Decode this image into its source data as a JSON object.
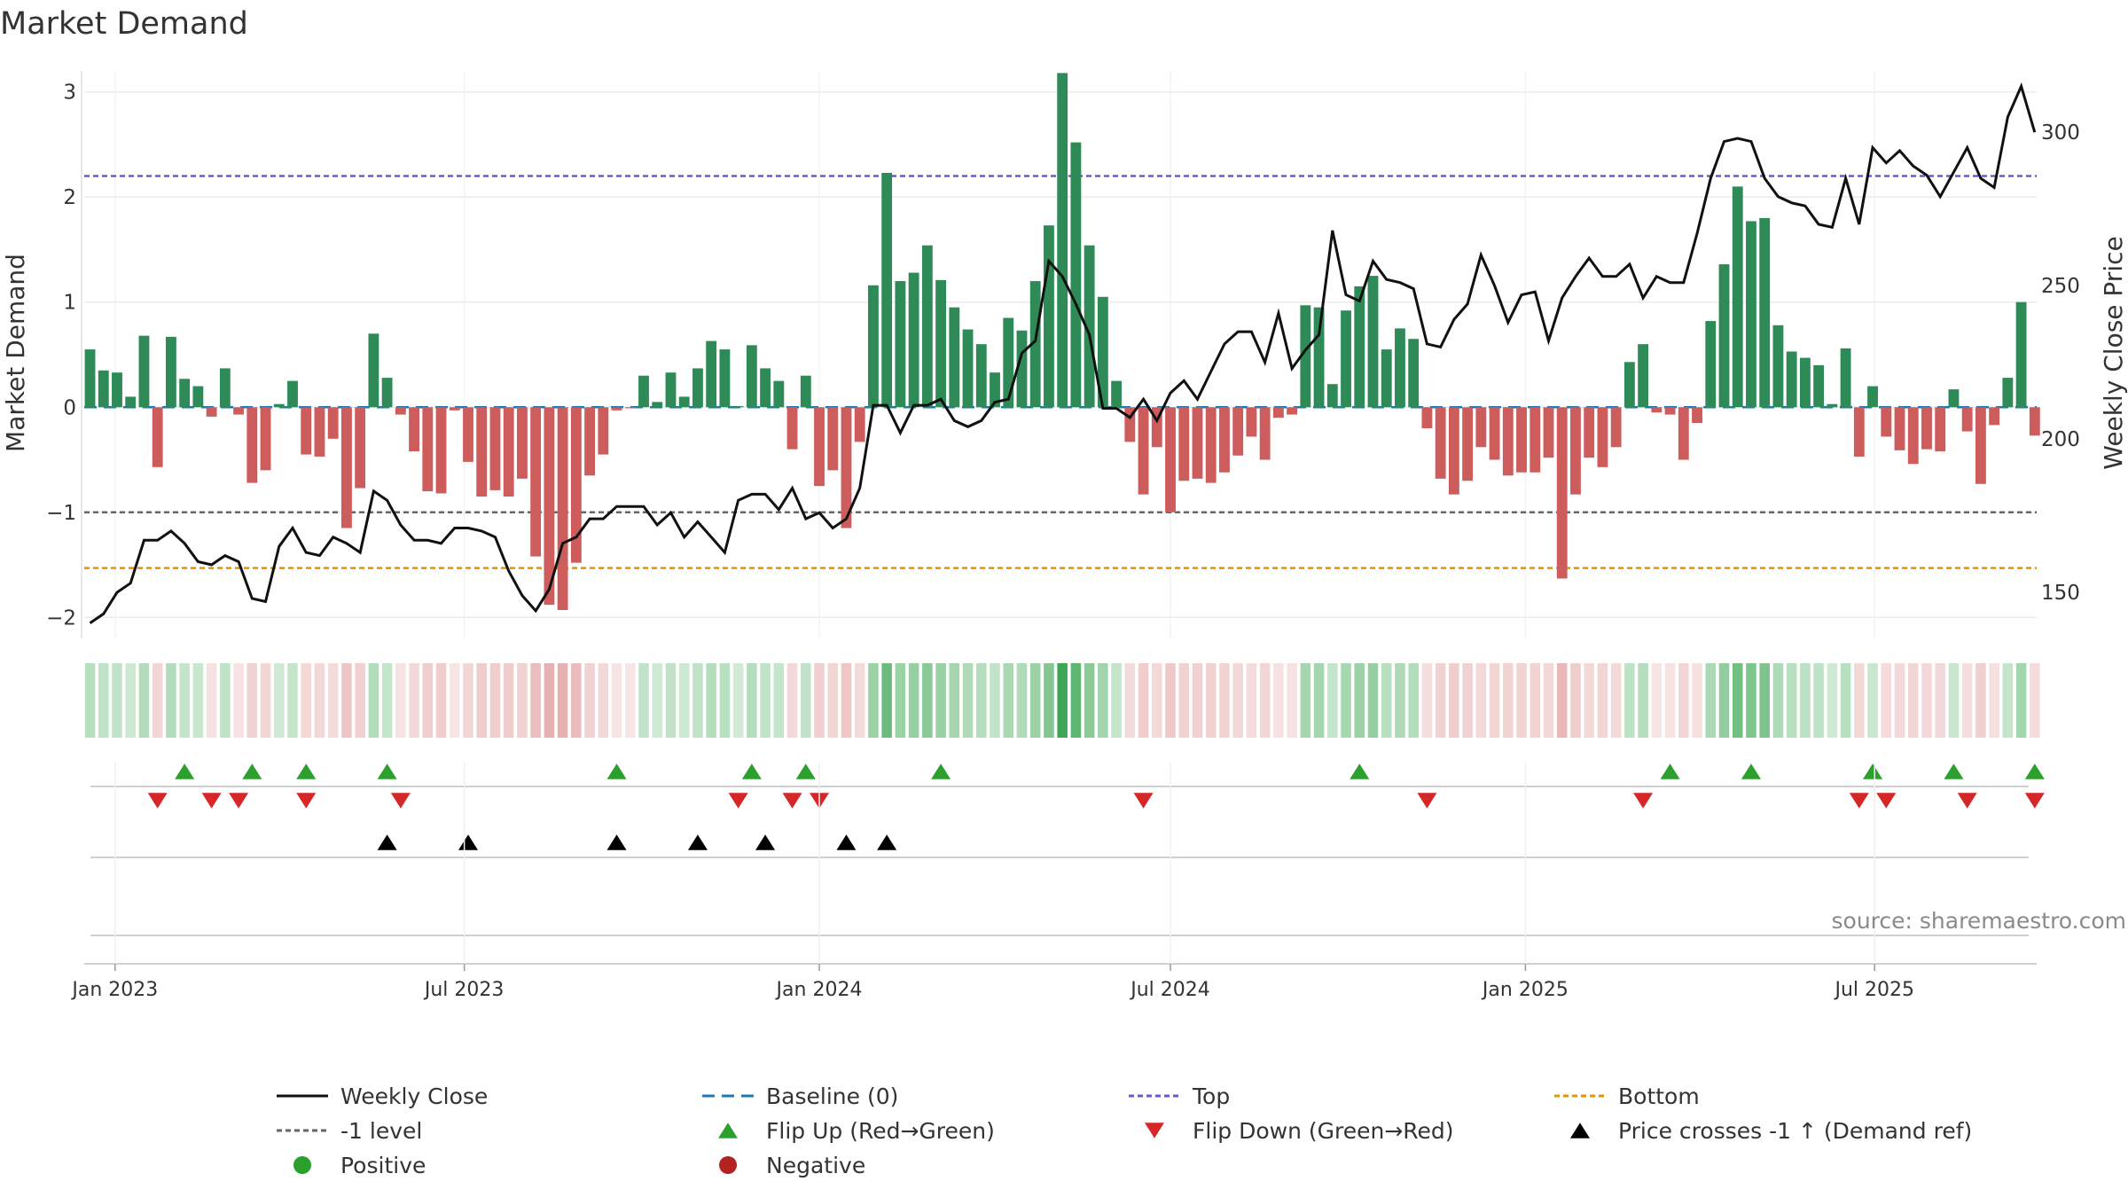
{
  "title": "Market Demand",
  "source": "source: sharemaestro.com",
  "colors": {
    "positive_bar": "#2e8b57",
    "negative_bar": "#cd5c5c",
    "price_line": "#111111",
    "baseline": "#1f77b4",
    "top_line": "#6a5acd",
    "bottom_line": "#e69500",
    "minus1_line": "#666666",
    "flip_up": "#2ca02c",
    "flip_down": "#d62728",
    "cross": "#000000",
    "positive_dot": "#2ca02c",
    "negative_dot": "#b22222",
    "grid": "#ebebeb"
  },
  "chart_data": {
    "type": "bar+line",
    "title": "Market Demand",
    "ylabel": "Market Demand",
    "ylabel_right": "Weekly Close Price",
    "ylim": [
      -2.2,
      3.2
    ],
    "ylim_right": [
      135,
      320
    ],
    "yticks": [
      3,
      2,
      1,
      0,
      -1,
      -2
    ],
    "yticks_right": [
      300,
      250,
      200,
      150
    ],
    "x_start": "2022-12-16",
    "x_end": "2025-09-23",
    "week_start": "2022-12-19",
    "xticks": [
      {
        "date": "2023-01-01",
        "label": "Jan 2023"
      },
      {
        "date": "2023-07-01",
        "label": "Jul 2023"
      },
      {
        "date": "2024-01-01",
        "label": "Jan 2024"
      },
      {
        "date": "2024-07-01",
        "label": "Jul 2024"
      },
      {
        "date": "2025-01-01",
        "label": "Jan 2025"
      },
      {
        "date": "2025-07-01",
        "label": "Jul 2025"
      }
    ],
    "reference_lines": {
      "baseline": 0,
      "top": 2.2,
      "minus1": -1,
      "bottom": -1.53
    },
    "demand": [
      0.55,
      0.35,
      0.33,
      0.1,
      0.68,
      -0.57,
      0.67,
      0.27,
      0.2,
      -0.09,
      0.37,
      -0.07,
      -0.72,
      -0.6,
      0.03,
      0.25,
      -0.45,
      -0.47,
      -0.3,
      -1.15,
      -0.77,
      0.7,
      0.28,
      -0.07,
      -0.42,
      -0.8,
      -0.82,
      -0.03,
      -0.52,
      -0.85,
      -0.79,
      -0.85,
      -0.68,
      -1.42,
      -1.88,
      -1.93,
      -1.48,
      -0.65,
      -0.45,
      -0.03,
      -0.01,
      0.3,
      0.05,
      0.33,
      0.1,
      0.37,
      0.63,
      0.55,
      0.01,
      0.59,
      0.37,
      0.25,
      -0.4,
      0.3,
      -0.75,
      -0.6,
      -1.15,
      -0.33,
      1.16,
      2.23,
      1.2,
      1.28,
      1.54,
      1.21,
      0.95,
      0.74,
      0.6,
      0.33,
      0.85,
      0.73,
      1.2,
      1.73,
      3.18,
      2.52,
      1.54,
      1.05,
      0.25,
      -0.33,
      -0.83,
      -0.38,
      -1.0,
      -0.7,
      -0.68,
      -0.72,
      -0.62,
      -0.46,
      -0.28,
      -0.5,
      -0.1,
      -0.07,
      0.97,
      0.95,
      0.22,
      0.92,
      1.15,
      1.25,
      0.55,
      0.75,
      0.65,
      -0.2,
      -0.68,
      -0.83,
      -0.7,
      -0.38,
      -0.5,
      -0.65,
      -0.62,
      -0.62,
      -0.48,
      -1.63,
      -0.83,
      -0.48,
      -0.57,
      -0.38,
      0.43,
      0.6,
      -0.05,
      -0.07,
      -0.5,
      -0.15,
      0.82,
      1.36,
      2.1,
      1.77,
      1.8,
      0.78,
      0.53,
      0.47,
      0.4,
      0.03,
      0.56,
      -0.47,
      0.2,
      -0.28,
      -0.41,
      -0.54,
      -0.4,
      -0.42,
      0.17,
      -0.23,
      -0.73,
      -0.17,
      0.28,
      1.0,
      -0.27
    ],
    "price": [
      140,
      143,
      150,
      153,
      167,
      167,
      170,
      166,
      160,
      159,
      162,
      160,
      148,
      147,
      165,
      171,
      163,
      162,
      168,
      166,
      163,
      183,
      180,
      172,
      167,
      167,
      166,
      171,
      171,
      170,
      168,
      157,
      149,
      144,
      151,
      166,
      168,
      174,
      174,
      178,
      178,
      178,
      172,
      176,
      168,
      173,
      168,
      163,
      180,
      182,
      182,
      177,
      184,
      174,
      176,
      171,
      174,
      184,
      211,
      211,
      202,
      211,
      211,
      213,
      206,
      204,
      206,
      212,
      213,
      228,
      232,
      258,
      253,
      244,
      234,
      210,
      210,
      207,
      213,
      206,
      215,
      219,
      213,
      222,
      231,
      235,
      235,
      225,
      241,
      223,
      229,
      234,
      268,
      247,
      245,
      258,
      252,
      251,
      249,
      231,
      230,
      239,
      244,
      260,
      250,
      238,
      247,
      248,
      232,
      246,
      253,
      259,
      253,
      253,
      257,
      246,
      253,
      251,
      251,
      267,
      285,
      297,
      298,
      297,
      285,
      279,
      277,
      276,
      270,
      269,
      285,
      270,
      295,
      290,
      294,
      289,
      286,
      279,
      287,
      295,
      285,
      282,
      305,
      315,
      300
    ],
    "top_positions": [
      7,
      12,
      16,
      22,
      39,
      49,
      53,
      63,
      94,
      117,
      123,
      132,
      138,
      144
    ],
    "bottom_positions": [
      5,
      9,
      11,
      16,
      23,
      48,
      52,
      54,
      78,
      99,
      115,
      131,
      133,
      139,
      144
    ],
    "cross_positions": [
      22,
      28,
      39,
      45,
      50,
      56,
      59
    ]
  },
  "legend": [
    {
      "key": "weekly_close",
      "label": "Weekly Close"
    },
    {
      "key": "baseline",
      "label": "Baseline (0)"
    },
    {
      "key": "top",
      "label": "Top"
    },
    {
      "key": "bottom",
      "label": "Bottom"
    },
    {
      "key": "minus1",
      "label": "-1 level"
    },
    {
      "key": "flip_up",
      "label": "Flip Up (Red→Green)"
    },
    {
      "key": "flip_down",
      "label": "Flip Down (Green→Red)"
    },
    {
      "key": "cross",
      "label": "Price crosses -1 ↑ (Demand ref)"
    },
    {
      "key": "positive",
      "label": "Positive"
    },
    {
      "key": "negative",
      "label": "Negative"
    }
  ]
}
